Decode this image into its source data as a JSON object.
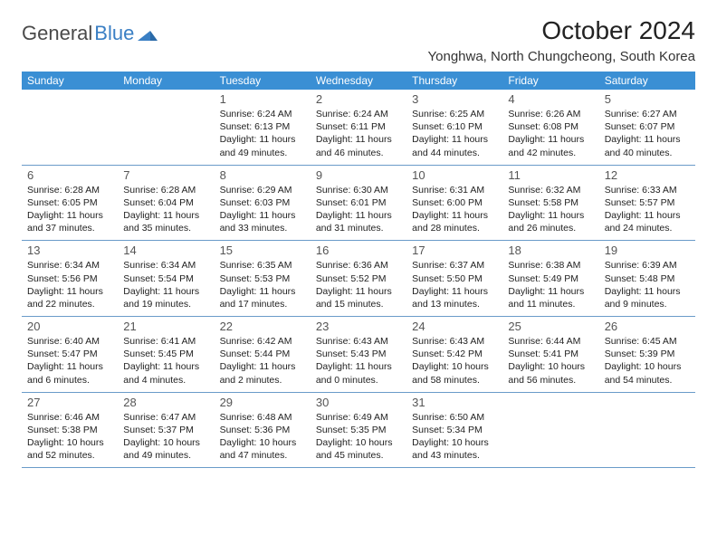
{
  "logo": {
    "text1": "General",
    "text2": "Blue"
  },
  "title": "October 2024",
  "location": "Yonghwa, North Chungcheong, South Korea",
  "colors": {
    "header_bg": "#3a8fd4",
    "header_text": "#ffffff",
    "border": "#6a9bc9",
    "logo_gray": "#4a4a4a",
    "logo_blue": "#3a7fc4",
    "text": "#222222",
    "daynum": "#555555",
    "background": "#ffffff"
  },
  "weekdays": [
    "Sunday",
    "Monday",
    "Tuesday",
    "Wednesday",
    "Thursday",
    "Friday",
    "Saturday"
  ],
  "weeks": [
    [
      null,
      null,
      {
        "n": "1",
        "sr": "6:24 AM",
        "ss": "6:13 PM",
        "dl": "11 hours and 49 minutes."
      },
      {
        "n": "2",
        "sr": "6:24 AM",
        "ss": "6:11 PM",
        "dl": "11 hours and 46 minutes."
      },
      {
        "n": "3",
        "sr": "6:25 AM",
        "ss": "6:10 PM",
        "dl": "11 hours and 44 minutes."
      },
      {
        "n": "4",
        "sr": "6:26 AM",
        "ss": "6:08 PM",
        "dl": "11 hours and 42 minutes."
      },
      {
        "n": "5",
        "sr": "6:27 AM",
        "ss": "6:07 PM",
        "dl": "11 hours and 40 minutes."
      }
    ],
    [
      {
        "n": "6",
        "sr": "6:28 AM",
        "ss": "6:05 PM",
        "dl": "11 hours and 37 minutes."
      },
      {
        "n": "7",
        "sr": "6:28 AM",
        "ss": "6:04 PM",
        "dl": "11 hours and 35 minutes."
      },
      {
        "n": "8",
        "sr": "6:29 AM",
        "ss": "6:03 PM",
        "dl": "11 hours and 33 minutes."
      },
      {
        "n": "9",
        "sr": "6:30 AM",
        "ss": "6:01 PM",
        "dl": "11 hours and 31 minutes."
      },
      {
        "n": "10",
        "sr": "6:31 AM",
        "ss": "6:00 PM",
        "dl": "11 hours and 28 minutes."
      },
      {
        "n": "11",
        "sr": "6:32 AM",
        "ss": "5:58 PM",
        "dl": "11 hours and 26 minutes."
      },
      {
        "n": "12",
        "sr": "6:33 AM",
        "ss": "5:57 PM",
        "dl": "11 hours and 24 minutes."
      }
    ],
    [
      {
        "n": "13",
        "sr": "6:34 AM",
        "ss": "5:56 PM",
        "dl": "11 hours and 22 minutes."
      },
      {
        "n": "14",
        "sr": "6:34 AM",
        "ss": "5:54 PM",
        "dl": "11 hours and 19 minutes."
      },
      {
        "n": "15",
        "sr": "6:35 AM",
        "ss": "5:53 PM",
        "dl": "11 hours and 17 minutes."
      },
      {
        "n": "16",
        "sr": "6:36 AM",
        "ss": "5:52 PM",
        "dl": "11 hours and 15 minutes."
      },
      {
        "n": "17",
        "sr": "6:37 AM",
        "ss": "5:50 PM",
        "dl": "11 hours and 13 minutes."
      },
      {
        "n": "18",
        "sr": "6:38 AM",
        "ss": "5:49 PM",
        "dl": "11 hours and 11 minutes."
      },
      {
        "n": "19",
        "sr": "6:39 AM",
        "ss": "5:48 PM",
        "dl": "11 hours and 9 minutes."
      }
    ],
    [
      {
        "n": "20",
        "sr": "6:40 AM",
        "ss": "5:47 PM",
        "dl": "11 hours and 6 minutes."
      },
      {
        "n": "21",
        "sr": "6:41 AM",
        "ss": "5:45 PM",
        "dl": "11 hours and 4 minutes."
      },
      {
        "n": "22",
        "sr": "6:42 AM",
        "ss": "5:44 PM",
        "dl": "11 hours and 2 minutes."
      },
      {
        "n": "23",
        "sr": "6:43 AM",
        "ss": "5:43 PM",
        "dl": "11 hours and 0 minutes."
      },
      {
        "n": "24",
        "sr": "6:43 AM",
        "ss": "5:42 PM",
        "dl": "10 hours and 58 minutes."
      },
      {
        "n": "25",
        "sr": "6:44 AM",
        "ss": "5:41 PM",
        "dl": "10 hours and 56 minutes."
      },
      {
        "n": "26",
        "sr": "6:45 AM",
        "ss": "5:39 PM",
        "dl": "10 hours and 54 minutes."
      }
    ],
    [
      {
        "n": "27",
        "sr": "6:46 AM",
        "ss": "5:38 PM",
        "dl": "10 hours and 52 minutes."
      },
      {
        "n": "28",
        "sr": "6:47 AM",
        "ss": "5:37 PM",
        "dl": "10 hours and 49 minutes."
      },
      {
        "n": "29",
        "sr": "6:48 AM",
        "ss": "5:36 PM",
        "dl": "10 hours and 47 minutes."
      },
      {
        "n": "30",
        "sr": "6:49 AM",
        "ss": "5:35 PM",
        "dl": "10 hours and 45 minutes."
      },
      {
        "n": "31",
        "sr": "6:50 AM",
        "ss": "5:34 PM",
        "dl": "10 hours and 43 minutes."
      },
      null,
      null
    ]
  ],
  "labels": {
    "sunrise": "Sunrise:",
    "sunset": "Sunset:",
    "daylight": "Daylight:"
  }
}
